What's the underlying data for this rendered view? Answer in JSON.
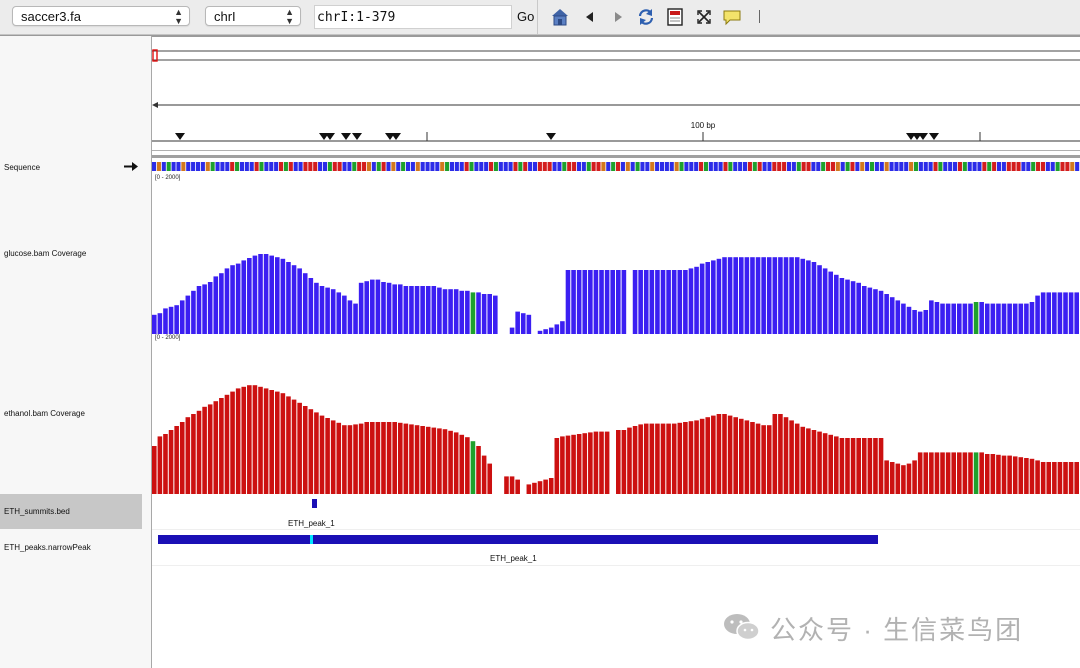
{
  "toolbar": {
    "genome": "saccer3.fa",
    "chromosome": "chrI",
    "locus": "chrI:1-379",
    "go_label": "Go"
  },
  "ruler": {
    "scale_label": "100 bp"
  },
  "tracks": {
    "sequence": "Sequence",
    "glucose": "glucose.bam Coverage",
    "ethanol": "ethanol.bam Coverage",
    "summits": "ETH_summits.bed",
    "peaks": "ETH_peaks.narrowPeak",
    "glucose_range": "[0 - 2000]",
    "ethanol_range": "[0 - 2000]"
  },
  "features": {
    "summit_label": "ETH_peak_1",
    "peak_label": "ETH_peak_1"
  },
  "watermark": "公众号 · 生信菜鸟团",
  "colors": {
    "coverage_glucose": "#3b1ff2",
    "coverage_ethanol": "#cc1010",
    "feature": "#1a0fb5",
    "summit_marker": "#00e5ff",
    "base_A": "#1ea12c",
    "base_C": "#2c2ce8",
    "base_G": "#d2781e",
    "base_T": "#d31e1e"
  },
  "coverage": {
    "glucose": [
      240,
      260,
      320,
      340,
      360,
      420,
      480,
      540,
      600,
      620,
      650,
      720,
      760,
      820,
      860,
      880,
      920,
      950,
      980,
      1000,
      1000,
      980,
      960,
      940,
      900,
      860,
      820,
      760,
      700,
      640,
      600,
      580,
      560,
      520,
      480,
      420,
      380,
      640,
      660,
      680,
      680,
      650,
      640,
      620,
      620,
      600,
      600,
      600,
      600,
      600,
      600,
      580,
      560,
      560,
      560,
      540,
      540,
      520,
      520,
      500,
      500,
      480,
      0,
      0,
      80,
      280,
      260,
      240,
      0,
      40,
      60,
      80,
      120,
      160,
      800,
      800,
      800,
      800,
      800,
      800,
      800,
      800,
      800,
      800,
      800,
      0,
      800,
      800,
      800,
      800,
      800,
      800,
      800,
      800,
      800,
      800,
      820,
      840,
      880,
      900,
      920,
      940,
      960,
      960,
      960,
      960,
      960,
      960,
      960,
      960,
      960,
      960,
      960,
      960,
      960,
      960,
      940,
      920,
      900,
      860,
      820,
      780,
      740,
      700,
      680,
      660,
      640,
      600,
      580,
      560,
      540,
      500,
      460,
      420,
      380,
      340,
      300,
      280,
      300,
      420,
      400,
      380,
      380,
      380,
      380,
      380,
      380,
      400,
      400,
      380,
      380,
      380,
      380,
      380,
      380,
      380,
      380,
      400,
      480,
      520,
      520,
      520,
      520,
      520,
      520,
      520
    ],
    "ethanol": [
      600,
      720,
      750,
      800,
      850,
      900,
      960,
      1000,
      1040,
      1090,
      1120,
      1160,
      1200,
      1240,
      1280,
      1320,
      1340,
      1360,
      1360,
      1340,
      1320,
      1300,
      1280,
      1260,
      1220,
      1180,
      1140,
      1100,
      1060,
      1020,
      980,
      950,
      920,
      890,
      860,
      860,
      870,
      880,
      900,
      900,
      900,
      900,
      900,
      900,
      890,
      880,
      870,
      860,
      850,
      840,
      830,
      820,
      810,
      790,
      770,
      740,
      710,
      660,
      600,
      480,
      380,
      0,
      0,
      220,
      220,
      180,
      0,
      120,
      140,
      160,
      180,
      200,
      700,
      720,
      730,
      740,
      750,
      760,
      770,
      780,
      780,
      780,
      0,
      800,
      800,
      830,
      850,
      870,
      880,
      880,
      880,
      880,
      880,
      880,
      890,
      900,
      910,
      920,
      940,
      960,
      980,
      1000,
      1000,
      980,
      960,
      940,
      920,
      900,
      880,
      860,
      860,
      1000,
      1000,
      960,
      920,
      880,
      840,
      820,
      800,
      780,
      760,
      740,
      720,
      700,
      700,
      700,
      700,
      700,
      700,
      700,
      700,
      420,
      400,
      380,
      360,
      380,
      420,
      520,
      520,
      520,
      520,
      520,
      520,
      520,
      520,
      520,
      520,
      520,
      520,
      500,
      500,
      490,
      480,
      480,
      470,
      460,
      450,
      440,
      420,
      400,
      400,
      400,
      400,
      400,
      400,
      400
    ]
  }
}
